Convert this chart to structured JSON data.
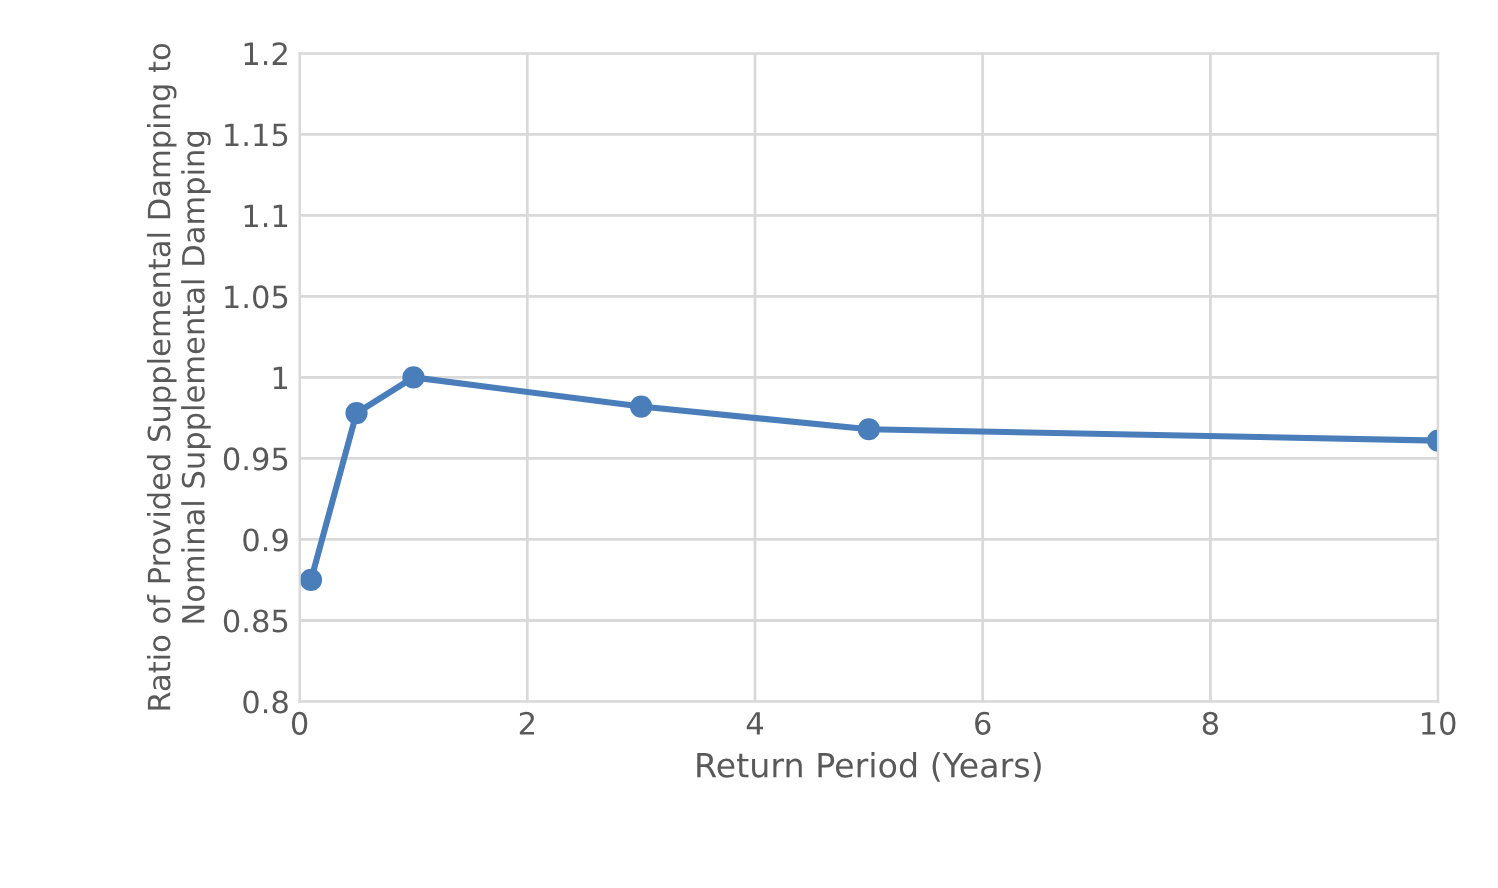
{
  "chart_data": {
    "type": "line",
    "xlabel": "Return Period (Years)",
    "ylabel": "Ratio of Provided Supplemental Damping to\nNominal Supplemental Damping",
    "x": [
      0.1,
      0.5,
      1,
      3,
      5,
      10
    ],
    "series": [
      {
        "color": "#4a7ebb",
        "values": [
          0.875,
          0.978,
          1,
          0.982,
          0.968,
          0.961
        ]
      }
    ],
    "xlim": [
      0,
      10
    ],
    "xticks": [
      0,
      2,
      4,
      6,
      8,
      10
    ],
    "ylim": [
      0.8,
      1.2
    ],
    "yticks": [
      0.8,
      0.85,
      0.9,
      0.95,
      1,
      1.05,
      1.1,
      1.15,
      1.2
    ],
    "grid": true,
    "legend": false,
    "marker": "circle",
    "line_style": "solid"
  }
}
